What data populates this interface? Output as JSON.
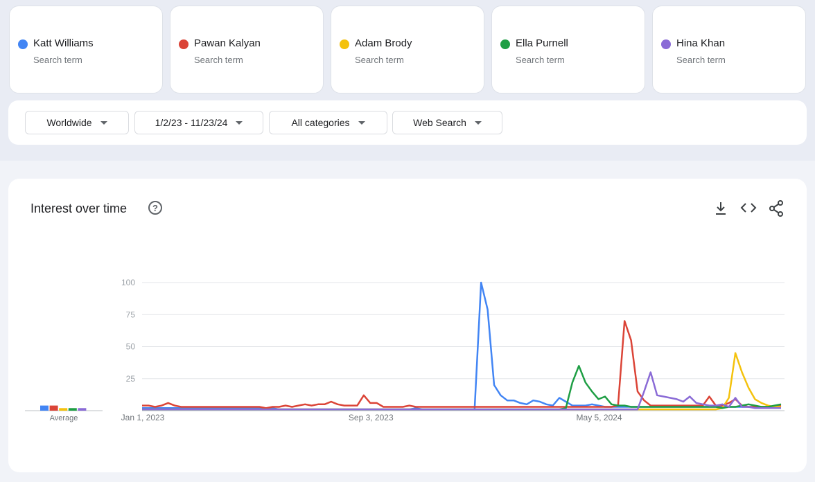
{
  "search_terms": {
    "subtitles": [
      "Search term",
      "Search term",
      "Search term",
      "Search term",
      "Search term"
    ]
  },
  "filters": [
    "Worldwide",
    "1/2/23 - 11/23/24",
    "All categories",
    "Web Search"
  ],
  "chart_data": {
    "type": "line",
    "title": "Interest over time",
    "categories": [
      "Jan 1, 2023",
      null,
      null,
      null,
      null,
      null,
      null,
      null,
      null,
      null,
      null,
      null,
      null,
      null,
      null,
      null,
      null,
      null,
      null,
      null,
      null,
      null,
      null,
      null,
      null,
      null,
      null,
      null,
      null,
      null,
      null,
      null,
      null,
      null,
      null,
      "Sep 3, 2023",
      null,
      null,
      null,
      null,
      null,
      null,
      null,
      null,
      null,
      null,
      null,
      null,
      null,
      null,
      null,
      null,
      null,
      null,
      null,
      null,
      null,
      null,
      null,
      null,
      null,
      null,
      null,
      null,
      null,
      null,
      null,
      null,
      null,
      null,
      "May 5, 2024",
      null,
      null,
      null,
      null,
      null,
      null,
      null,
      null,
      null,
      null,
      null,
      null,
      null,
      null,
      null,
      null,
      null,
      null,
      null,
      null,
      null,
      null,
      null,
      null,
      null,
      null,
      null,
      null
    ],
    "series": [
      {
        "name": "Katt Williams",
        "color": "#4285f4",
        "values": [
          2,
          2,
          2,
          2,
          2,
          2,
          2,
          2,
          2,
          2,
          2,
          2,
          2,
          2,
          2,
          2,
          2,
          2,
          2,
          2,
          2,
          1,
          1,
          1,
          1,
          1,
          1,
          1,
          1,
          1,
          1,
          1,
          1,
          1,
          1,
          1,
          1,
          1,
          1,
          1,
          1,
          1,
          2,
          1,
          1,
          1,
          1,
          1,
          1,
          1,
          1,
          1,
          100,
          79,
          20,
          12,
          8,
          8,
          6,
          5,
          8,
          7,
          5,
          4,
          10,
          7,
          4,
          4,
          4,
          5,
          4,
          3,
          3,
          3,
          3,
          3,
          3,
          3,
          3,
          3,
          3,
          3,
          3,
          3,
          3,
          3,
          3,
          3,
          3,
          3,
          3,
          3,
          3,
          3,
          3,
          3,
          3,
          3,
          3
        ]
      },
      {
        "name": "Pawan Kalyan",
        "color": "#db4437",
        "values": [
          4,
          4,
          3,
          4,
          6,
          4,
          3,
          3,
          3,
          3,
          3,
          3,
          3,
          3,
          3,
          3,
          3,
          3,
          3,
          2,
          3,
          3,
          4,
          3,
          4,
          5,
          4,
          5,
          5,
          7,
          5,
          4,
          4,
          4,
          12,
          6,
          6,
          3,
          3,
          3,
          3,
          4,
          3,
          3,
          3,
          3,
          3,
          3,
          3,
          3,
          3,
          3,
          3,
          3,
          3,
          3,
          3,
          3,
          3,
          3,
          3,
          3,
          3,
          3,
          3,
          3,
          3,
          3,
          3,
          3,
          3,
          3,
          3,
          4,
          70,
          55,
          15,
          8,
          4,
          4,
          4,
          4,
          4,
          4,
          4,
          4,
          4,
          11,
          4,
          4,
          6,
          9,
          4,
          3,
          3,
          3,
          3,
          3,
          4
        ]
      },
      {
        "name": "Adam Brody",
        "color": "#f4c20d",
        "values": [
          1,
          1,
          1,
          1,
          1,
          1,
          1,
          1,
          1,
          1,
          1,
          1,
          1,
          1,
          1,
          1,
          1,
          1,
          1,
          1,
          1,
          1,
          1,
          1,
          1,
          1,
          1,
          1,
          1,
          1,
          1,
          1,
          1,
          1,
          1,
          1,
          1,
          1,
          1,
          1,
          1,
          1,
          1,
          1,
          1,
          1,
          1,
          1,
          1,
          1,
          1,
          1,
          1,
          1,
          1,
          1,
          1,
          1,
          1,
          1,
          1,
          1,
          1,
          1,
          1,
          1,
          1,
          1,
          1,
          1,
          1,
          1,
          1,
          1,
          1,
          1,
          1,
          1,
          1,
          1,
          1,
          1,
          1,
          1,
          1,
          1,
          1,
          1,
          1,
          2,
          10,
          45,
          30,
          18,
          9,
          6,
          4,
          3,
          3
        ]
      },
      {
        "name": "Ella Purnell",
        "color": "#1e9e44",
        "values": [
          1,
          1,
          1,
          1,
          1,
          1,
          1,
          1,
          1,
          1,
          1,
          1,
          1,
          1,
          1,
          1,
          1,
          1,
          1,
          1,
          1,
          1,
          1,
          1,
          1,
          1,
          1,
          1,
          1,
          1,
          1,
          1,
          1,
          1,
          1,
          1,
          1,
          1,
          1,
          1,
          1,
          1,
          1,
          1,
          1,
          1,
          1,
          1,
          1,
          1,
          1,
          1,
          1,
          1,
          1,
          1,
          1,
          1,
          1,
          1,
          1,
          1,
          1,
          1,
          1,
          2,
          22,
          35,
          22,
          15,
          9,
          11,
          5,
          4,
          4,
          3,
          3,
          3,
          3,
          3,
          3,
          3,
          3,
          3,
          3,
          3,
          3,
          3,
          3,
          2,
          3,
          3,
          4,
          5,
          4,
          3,
          3,
          4,
          5
        ]
      },
      {
        "name": "Hina Khan",
        "color": "#8a6bd6",
        "values": [
          1,
          1,
          1,
          1,
          1,
          1,
          1,
          1,
          1,
          1,
          1,
          1,
          1,
          1,
          1,
          1,
          1,
          1,
          1,
          1,
          1,
          1,
          1,
          1,
          1,
          1,
          1,
          1,
          1,
          1,
          1,
          1,
          1,
          1,
          1,
          1,
          1,
          1,
          1,
          1,
          1,
          1,
          1,
          1,
          1,
          1,
          1,
          1,
          1,
          1,
          1,
          1,
          1,
          1,
          1,
          1,
          1,
          1,
          1,
          1,
          1,
          1,
          1,
          1,
          1,
          1,
          1,
          1,
          1,
          1,
          1,
          1,
          1,
          1,
          1,
          1,
          1,
          15,
          30,
          12,
          11,
          10,
          9,
          7,
          11,
          6,
          5,
          4,
          4,
          5,
          3,
          10,
          3,
          3,
          2,
          2,
          2,
          2,
          2
        ]
      }
    ],
    "averages": {
      "label": "Average",
      "values": [
        4,
        4,
        2,
        2,
        2
      ]
    },
    "ylim": [
      0,
      100
    ],
    "yticks": [
      25,
      50,
      75,
      100
    ],
    "grid": true
  }
}
